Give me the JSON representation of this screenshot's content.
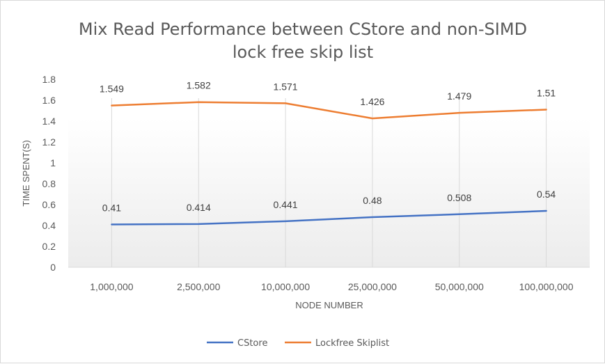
{
  "chart_data": {
    "type": "line",
    "title": [
      "Mix Read Performance between CStore and non-SIMD",
      "lock free skip list"
    ],
    "xlabel": "NODE NUMBER",
    "ylabel": "TIME SPENT(S)",
    "categories": [
      "1,000,000",
      "2,500,000",
      "10,000,000",
      "25,000,000",
      "50,000,000",
      "100,000,000"
    ],
    "ylim": [
      0,
      1.8
    ],
    "yticks": [
      "0",
      "0.2",
      "0.4",
      "0.6",
      "0.8",
      "1",
      "1.2",
      "1.4",
      "1.6",
      "1.8"
    ],
    "grid": "vertical",
    "legend_position": "bottom",
    "series": [
      {
        "name": "CStore",
        "color": "#4472c4",
        "values": [
          0.41,
          0.414,
          0.441,
          0.48,
          0.508,
          0.54
        ],
        "labels": [
          "0.41",
          "0.414",
          "0.441",
          "0.48",
          "0.508",
          "0.54"
        ]
      },
      {
        "name": "Lockfree Skiplist",
        "color": "#ed7d31",
        "values": [
          1.549,
          1.582,
          1.571,
          1.426,
          1.479,
          1.51
        ],
        "labels": [
          "1.549",
          "1.582",
          "1.571",
          "1.426",
          "1.479",
          "1.51"
        ]
      }
    ]
  }
}
